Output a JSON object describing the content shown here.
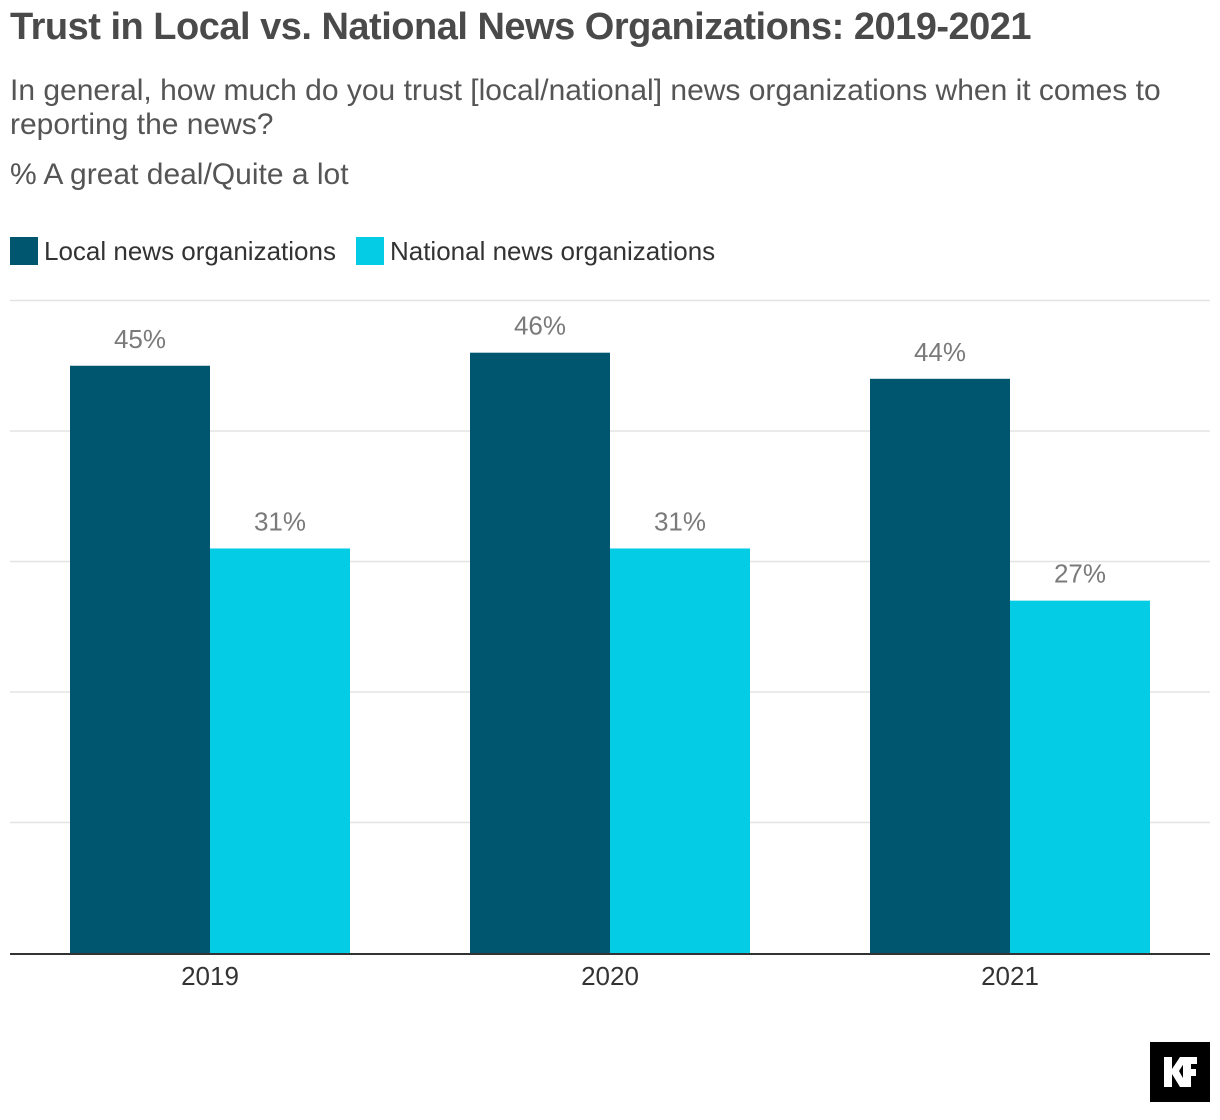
{
  "title": "Trust in Local vs. National News Organizations: 2019-2021",
  "subtitle": "In general, how much do you trust [local/national] news organizations when it comes to reporting the news?",
  "unit_note": "% A great deal/Quite a lot",
  "logo_text": "KF",
  "chart_data": {
    "type": "bar",
    "categories": [
      "2019",
      "2020",
      "2021"
    ],
    "series": [
      {
        "name": "Local news organizations",
        "values": [
          45,
          46,
          44
        ],
        "labels": [
          "45%",
          "46%",
          "44%"
        ],
        "color": "#00566f"
      },
      {
        "name": "National news organizations",
        "values": [
          31,
          31,
          27
        ],
        "labels": [
          "31%",
          "31%",
          "27%"
        ],
        "color": "#05cce5"
      }
    ],
    "ylim": [
      0,
      50
    ],
    "grid": true,
    "legend": "top-left",
    "label_color": "#7a7a7a"
  }
}
